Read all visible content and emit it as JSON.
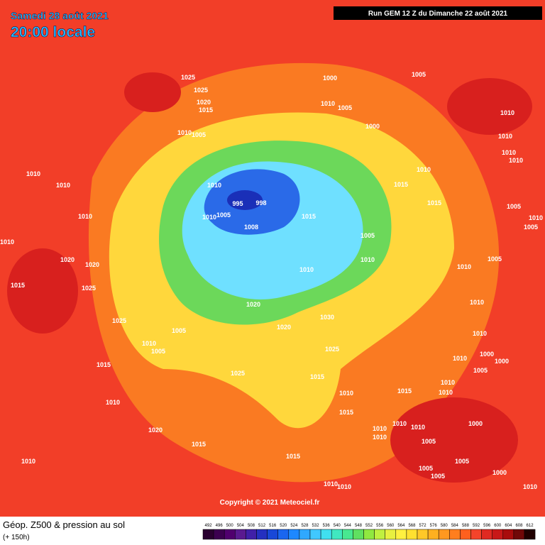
{
  "header": {
    "date": "Samedi 28 août 2021",
    "time": "20:00 locale",
    "run": "Run GEM 12 Z du Dimanche 22 août 2021"
  },
  "map": {
    "isobar_labels": [
      1025,
      1025,
      1020,
      1015,
      1010,
      1005,
      1000,
      1010,
      1005,
      1005,
      1000,
      1010,
      1010,
      1010,
      1010,
      1010,
      1010,
      1010,
      995,
      998,
      1010,
      1005,
      1010,
      1008,
      1015,
      1010,
      1015,
      1015,
      1005,
      1010,
      1005,
      1010,
      1005,
      1010,
      1005,
      1020,
      1020,
      1010,
      1010,
      1015,
      1025,
      1010,
      1020,
      1030,
      1025,
      1005,
      1020,
      1010,
      1005,
      1025,
      1010,
      1000,
      1010,
      1000,
      1005,
      1015,
      1025,
      1015,
      1010,
      1010,
      1015,
      1010,
      1010,
      1015,
      1020,
      1010,
      1010,
      1010,
      1000,
      1015,
      1005,
      1010,
      1015,
      1005,
      1010,
      1005,
      1000,
      1005,
      1010,
      1010,
      1010
    ],
    "copyright": "Copyright © 2021 Meteociel.fr"
  },
  "legend": {
    "title": "Géop. Z500 & pression au sol",
    "lead": "(+ 150h)",
    "scale": [
      492,
      496,
      500,
      504,
      508,
      512,
      516,
      520,
      524,
      528,
      532,
      536,
      540,
      544,
      548,
      552,
      556,
      560,
      564,
      568,
      572,
      576,
      580,
      584,
      588,
      592,
      596,
      600,
      604,
      608,
      612
    ]
  }
}
